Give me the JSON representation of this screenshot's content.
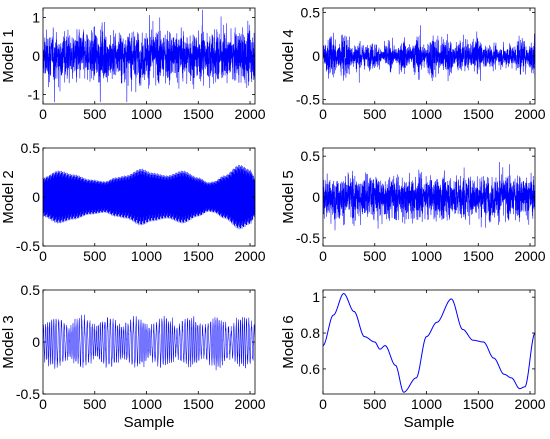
{
  "chart_data": [
    {
      "type": "line",
      "ylabel": "Model 1",
      "xlabel": "",
      "xlim": [
        0,
        2048
      ],
      "ylim": [
        -1.25,
        1.25
      ],
      "xticks": [
        0,
        500,
        1000,
        1500,
        2000
      ],
      "yticks": [
        -1,
        0,
        1
      ],
      "x_tick_labels": [
        "0",
        "500",
        "1000",
        "1500",
        "2000"
      ],
      "y_tick_labels": [
        "-1",
        "0",
        "1"
      ],
      "series_color": "#0000ff",
      "signal": {
        "kind": "noise",
        "amplitude": 0.45,
        "max_abs": 1.2,
        "n": 2048
      }
    },
    {
      "type": "line",
      "ylabel": "Model 4",
      "xlabel": "",
      "xlim": [
        0,
        2048
      ],
      "ylim": [
        -0.55,
        0.55
      ],
      "xticks": [
        0,
        500,
        1000,
        1500,
        2000
      ],
      "yticks": [
        -0.5,
        0,
        0.5
      ],
      "x_tick_labels": [
        "0",
        "500",
        "1000",
        "1500",
        "2000"
      ],
      "y_tick_labels": [
        "-0.5",
        "0",
        "0.5"
      ],
      "series_color": "#0000ff",
      "signal": {
        "kind": "bursty",
        "amplitude": 0.2,
        "max_abs": 0.53,
        "n": 2048
      }
    },
    {
      "type": "line",
      "ylabel": "Model 2",
      "xlabel": "",
      "xlim": [
        0,
        2048
      ],
      "ylim": [
        -0.5,
        0.5
      ],
      "xticks": [
        0,
        500,
        1000,
        1500,
        2000
      ],
      "yticks": [
        -0.5,
        0,
        0.5
      ],
      "x_tick_labels": [
        "0",
        "500",
        "1000",
        "1500",
        "2000"
      ],
      "y_tick_labels": [
        "-0.5",
        "0",
        "0.5"
      ],
      "series_color": "#0000ff",
      "signal": {
        "kind": "am",
        "n": 2048,
        "envelope_x": [
          0,
          150,
          300,
          450,
          600,
          700,
          800,
          950,
          1050,
          1200,
          1350,
          1500,
          1600,
          1650,
          1750,
          1900,
          2000,
          2048
        ],
        "envelope_y": [
          0.2,
          0.27,
          0.23,
          0.18,
          0.16,
          0.2,
          0.22,
          0.29,
          0.25,
          0.22,
          0.27,
          0.2,
          0.15,
          0.16,
          0.22,
          0.33,
          0.28,
          0.2
        ]
      }
    },
    {
      "type": "line",
      "ylabel": "Model 5",
      "xlabel": "",
      "xlim": [
        0,
        2048
      ],
      "ylim": [
        -0.6,
        0.6
      ],
      "xticks": [
        0,
        500,
        1000,
        1500,
        2000
      ],
      "yticks": [
        -0.5,
        0,
        0.5
      ],
      "x_tick_labels": [
        "0",
        "500",
        "1000",
        "1500",
        "2000"
      ],
      "y_tick_labels": [
        "-0.5",
        "0",
        "0.5"
      ],
      "series_color": "#0000ff",
      "signal": {
        "kind": "noise",
        "amplitude": 0.18,
        "max_abs": 0.6,
        "n": 2048
      }
    },
    {
      "type": "line",
      "ylabel": "Model 3",
      "xlabel": "Sample",
      "xlim": [
        0,
        2048
      ],
      "ylim": [
        -0.5,
        0.5
      ],
      "xticks": [
        0,
        500,
        1000,
        1500,
        2000
      ],
      "yticks": [
        -0.5,
        0,
        0.5
      ],
      "x_tick_labels": [
        "0",
        "500",
        "1000",
        "1500",
        "2000"
      ],
      "y_tick_labels": [
        "-0.5",
        "0",
        "0.5"
      ],
      "series_color": "#0000ff",
      "signal": {
        "kind": "narrowband",
        "amplitude": 0.22,
        "max_abs": 0.45,
        "n": 2048
      }
    },
    {
      "type": "line",
      "ylabel": "Model 6",
      "xlabel": "Sample",
      "xlim": [
        0,
        2048
      ],
      "ylim": [
        0.46,
        1.04
      ],
      "xticks": [
        0,
        500,
        1000,
        1500,
        2000
      ],
      "yticks": [
        0.6,
        0.8,
        1
      ],
      "x_tick_labels": [
        "0",
        "500",
        "1000",
        "1500",
        "2000"
      ],
      "y_tick_labels": [
        "0.6",
        "0.8",
        "1"
      ],
      "series_color": "#0000ff",
      "signal": {
        "kind": "smooth",
        "x": [
          0,
          100,
          200,
          300,
          400,
          500,
          550,
          600,
          700,
          780,
          900,
          1000,
          1100,
          1240,
          1350,
          1450,
          1550,
          1650,
          1750,
          1820,
          1900,
          1950,
          2048
        ],
        "y": [
          0.73,
          0.9,
          1.02,
          0.92,
          0.78,
          0.75,
          0.71,
          0.73,
          0.62,
          0.47,
          0.55,
          0.78,
          0.86,
          0.99,
          0.82,
          0.76,
          0.75,
          0.66,
          0.57,
          0.55,
          0.49,
          0.5,
          0.8
        ]
      }
    }
  ]
}
